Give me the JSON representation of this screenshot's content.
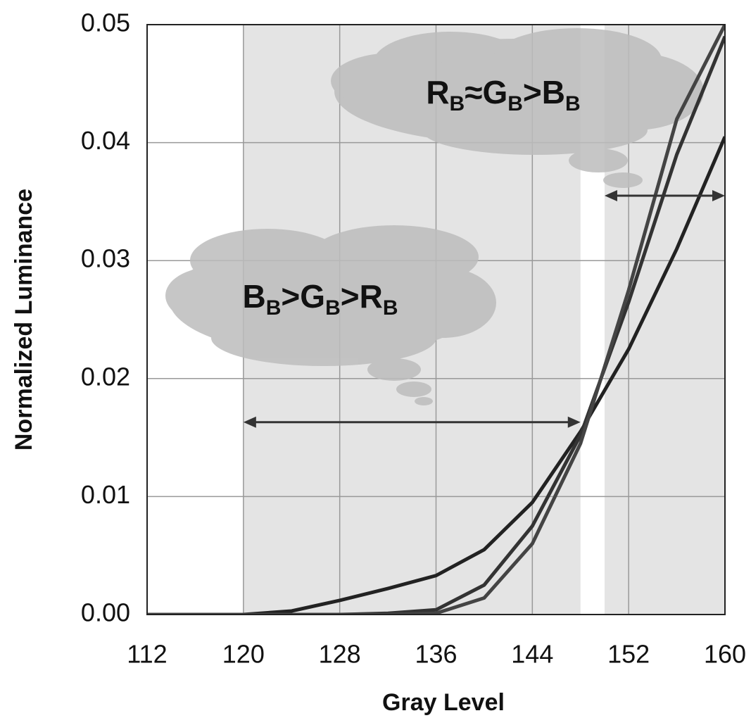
{
  "chart_data": {
    "type": "line",
    "xlabel": "Gray Level",
    "ylabel": "Normalized Luminance",
    "x": [
      112,
      116,
      120,
      124,
      128,
      132,
      136,
      140,
      144,
      148,
      152,
      156,
      160
    ],
    "series": [
      {
        "color": "#222222",
        "values": [
          0,
          0,
          0,
          0.0003,
          0.0012,
          0.0022,
          0.0033,
          0.0055,
          0.0095,
          0.0155,
          0.0225,
          0.031,
          0.0405
        ]
      },
      {
        "color": "#333333",
        "values": [
          0,
          0,
          0,
          0,
          0,
          0.0001,
          0.0004,
          0.0025,
          0.0075,
          0.0152,
          0.0265,
          0.039,
          0.049
        ]
      },
      {
        "color": "#444444",
        "values": [
          0,
          0,
          0,
          0,
          0,
          0,
          0.0001,
          0.0014,
          0.006,
          0.0145,
          0.0275,
          0.042,
          0.05
        ]
      }
    ],
    "xlim": [
      112,
      160
    ],
    "ylim": [
      0,
      0.05
    ],
    "xticks": [
      112,
      120,
      128,
      136,
      144,
      152,
      160
    ],
    "yticks": [
      {
        "value": 0,
        "label": "0.00"
      },
      0.01,
      0.02,
      0.03,
      0.04,
      0.05
    ],
    "grid": true,
    "annotations": [
      {
        "text": [
          "R",
          "B",
          "≈G",
          "B",
          ">B",
          "B"
        ],
        "x": [
          150,
          160
        ],
        "y": 0.0355
      },
      {
        "text": [
          "B",
          "B",
          ">G",
          "B",
          ">R",
          "B"
        ],
        "x": [
          120,
          148
        ],
        "y": 0.0163
      }
    ]
  }
}
